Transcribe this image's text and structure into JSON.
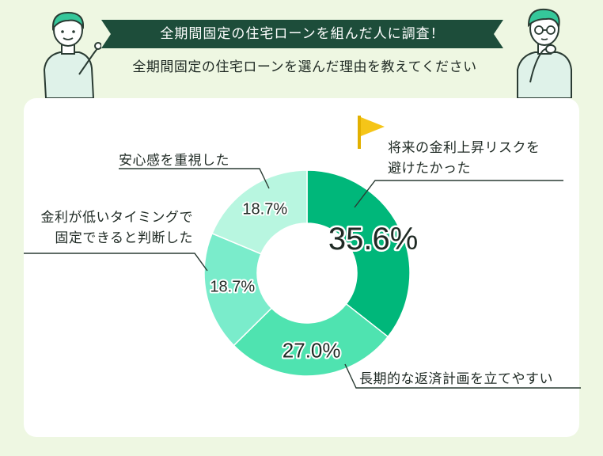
{
  "header": {
    "banner": "全期間固定の住宅ローンを組んだ人に調査！",
    "question": "全期間固定の住宅ローンを選んだ理由を教えてください"
  },
  "colors": {
    "banner_bg": "#1d4d3a",
    "background": "#eef7e2",
    "slice_1": "#00b77a",
    "slice_2": "#4fe3b0",
    "slice_3": "#7aeccb",
    "slice_4": "#b8f6e0",
    "flag": "#f5c518"
  },
  "chart_data": {
    "type": "pie",
    "variant": "donut",
    "categories": [
      "将来の金利上昇リスクを避けたかった",
      "長期的な返済計画を立てやすい",
      "金利が低いタイミングで固定できると判断した",
      "安心感を重視した"
    ],
    "values": [
      35.6,
      27.0,
      18.7,
      18.7
    ],
    "value_labels": [
      "35.6%",
      "27.0%",
      "18.7%",
      "18.7%"
    ],
    "highlight": "将来の金利上昇リスクを避けたかった"
  },
  "labels": {
    "slice_1_lines": [
      "将来の金利上昇リスクを",
      "避けたかった"
    ],
    "slice_2_lines": [
      "長期的な返済計画を立てやすい"
    ],
    "slice_3_lines": [
      "金利が低いタイミングで",
      "固定できると判断した"
    ],
    "slice_4_lines": [
      "安心感を重視した"
    ]
  },
  "icons": {
    "left_person": "pointing-person-icon",
    "right_person": "thinking-person-icon",
    "flag": "flag-icon"
  }
}
